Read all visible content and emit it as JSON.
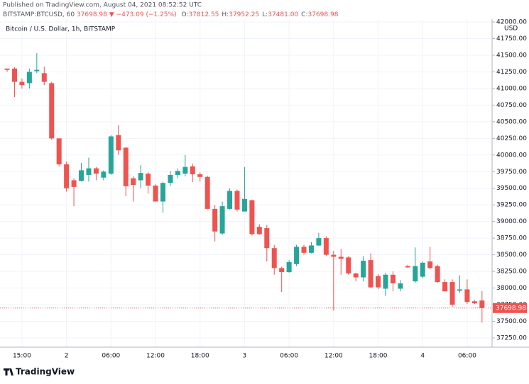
{
  "header": {
    "published": "Published on TradingView.com, August 04, 2021 08:52:52 UTC",
    "symbol": "BITSTAMP:BTCUSD, 60",
    "change": "▼ −473.09 (−1.25%)",
    "ohlc": [
      {
        "label": "O:",
        "value": "37812.55"
      },
      {
        "label": "H:",
        "value": "37952.25"
      },
      {
        "label": "L:",
        "value": "37481.00"
      },
      {
        "label": "C:",
        "value": "37698.98"
      }
    ]
  },
  "chart_data": {
    "type": "candlestick",
    "legend": "Bitcoin / U.S. Dollar, 1h, BITSTAMP",
    "y_unit": "USD",
    "up_color": "#26a69a",
    "down_color": "#ef5350",
    "categories": [
      null,
      null,
      "15:00",
      null,
      null,
      null,
      null,
      null,
      "2",
      null,
      null,
      null,
      null,
      null,
      "06:00",
      null,
      null,
      null,
      null,
      null,
      "12:00",
      null,
      null,
      null,
      null,
      null,
      "18:00",
      null,
      null,
      null,
      null,
      null,
      "3",
      null,
      null,
      null,
      null,
      null,
      "06:00",
      null,
      null,
      null,
      null,
      null,
      "12:00",
      null,
      null,
      null,
      null,
      null,
      "18:00",
      null,
      null,
      null,
      null,
      null,
      "4",
      null,
      null,
      null,
      null,
      null,
      "06:00",
      null,
      null
    ],
    "open": [
      41300,
      41300,
      41100,
      41080,
      41260,
      41230,
      41080,
      40250,
      39860,
      39620,
      39610,
      39700,
      39800,
      39660,
      39720,
      40300,
      40110,
      39650,
      39620,
      39720,
      39540,
      39300,
      39580,
      39700,
      39720,
      39830,
      39710,
      39670,
      39190,
      38820,
      39190,
      39460,
      39150,
      39320,
      38920,
      38900,
      38600,
      38300,
      38240,
      38360,
      38620,
      38530,
      38640,
      38750,
      38500,
      38470,
      38460,
      38220,
      38160,
      38420,
      38180,
      37990,
      38200,
      37990,
      38330,
      38100,
      38170,
      38400,
      38330,
      38090,
      38090,
      37960,
      37980,
      37800,
      37812.55
    ],
    "high": [
      41300,
      41320,
      41150,
      41300,
      41530,
      41330,
      41100,
      40250,
      39900,
      39650,
      39880,
      39960,
      39820,
      39770,
      40300,
      40450,
      40120,
      39680,
      39850,
      39740,
      39560,
      39600,
      39760,
      39800,
      40000,
      39870,
      39740,
      39690,
      39250,
      39300,
      39500,
      39480,
      39820,
      39330,
      38960,
      38950,
      38650,
      38320,
      38420,
      38650,
      38650,
      38690,
      38830,
      38780,
      38560,
      38590,
      38480,
      38230,
      38480,
      38520,
      38210,
      38230,
      38250,
      38120,
      38350,
      38610,
      38400,
      38620,
      38350,
      38130,
      38130,
      38190,
      38130,
      37820,
      37952.25
    ],
    "low": [
      41250,
      40870,
      41000,
      41000,
      41230,
      41050,
      40230,
      39830,
      39450,
      39230,
      39600,
      39600,
      39620,
      39620,
      39700,
      40000,
      39380,
      39300,
      39500,
      39420,
      39300,
      39130,
      39530,
      39650,
      39680,
      39590,
      39600,
      39180,
      38700,
      38800,
      39180,
      39150,
      39150,
      38790,
      38800,
      38400,
      38200,
      37940,
      38230,
      38330,
      38500,
      38520,
      38630,
      38480,
      37660,
      38200,
      38200,
      38100,
      38100,
      38000,
      37980,
      37880,
      37950,
      37950,
      38300,
      38080,
      38150,
      38280,
      38080,
      37950,
      37720,
      37930,
      37760,
      37760,
      37481
    ],
    "close": [
      41280,
      41100,
      41050,
      41250,
      41280,
      41100,
      40250,
      39860,
      39500,
      39520,
      39770,
      39800,
      39720,
      39750,
      40280,
      40070,
      39530,
      39550,
      39730,
      39540,
      39300,
      39580,
      39700,
      39760,
      39820,
      39710,
      39670,
      39190,
      38850,
      39230,
      39460,
      39180,
      39340,
      38810,
      38810,
      38600,
      38300,
      38240,
      38390,
      38620,
      38530,
      38640,
      38750,
      38500,
      38470,
      38440,
      38220,
      38160,
      38410,
      38010,
      38010,
      38200,
      38070,
      38070,
      38310,
      38330,
      38380,
      38300,
      38090,
      37950,
      37750,
      37980,
      37790,
      37770,
      37698.98
    ],
    "last_price": 37698.98,
    "ylim": [
      37111,
      42043
    ],
    "yticks": [
      {
        "value": 37250,
        "label": "37250.00"
      },
      {
        "value": 37500,
        "label": "37500.00"
      },
      {
        "value": 37750,
        "label": "37750.00"
      },
      {
        "value": 38000,
        "label": "38000.00"
      },
      {
        "value": 38250,
        "label": "38250.00"
      },
      {
        "value": 38500,
        "label": "38500.00"
      },
      {
        "value": 38750,
        "label": "38750.00"
      },
      {
        "value": 39000,
        "label": "39000.00"
      },
      {
        "value": 39250,
        "label": "39250.00"
      },
      {
        "value": 39500,
        "label": "39500.00"
      },
      {
        "value": 39750,
        "label": "39750.00"
      },
      {
        "value": 40000,
        "label": "40000.00"
      },
      {
        "value": 40250,
        "label": "40250.00"
      },
      {
        "value": 40500,
        "label": "40500.00"
      },
      {
        "value": 40750,
        "label": "40750.00"
      },
      {
        "value": 41000,
        "label": "41000.00"
      },
      {
        "value": 41250,
        "label": "41250.00"
      },
      {
        "value": 41500,
        "label": "41500.00"
      },
      {
        "value": 41750,
        "label": "41750.00"
      },
      {
        "value": 42000,
        "label": "42000.00"
      }
    ],
    "grid": true
  },
  "footer": {
    "brand": "TradingView"
  }
}
